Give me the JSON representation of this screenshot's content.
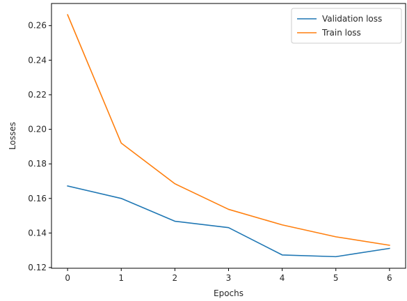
{
  "chart_data": {
    "type": "line",
    "title": "",
    "xlabel": "Epochs",
    "ylabel": "Losses",
    "x": [
      0,
      1,
      2,
      3,
      4,
      5,
      6
    ],
    "xlim": [
      -0.3,
      6.3
    ],
    "ylim": [
      0.1196,
      0.2728
    ],
    "xticks": [
      0,
      1,
      2,
      3,
      4,
      5,
      6
    ],
    "yticks": [
      0.12,
      0.14,
      0.16,
      0.18,
      0.2,
      0.22,
      0.24,
      0.26
    ],
    "ytick_labels": [
      "0.12",
      "0.14",
      "0.16",
      "0.18",
      "0.20",
      "0.22",
      "0.24",
      "0.26"
    ],
    "grid": false,
    "legend_position": "top-right",
    "series": [
      {
        "name": "Validation loss",
        "color": "#1f77b4",
        "values": [
          0.1672,
          0.16,
          0.1468,
          0.1431,
          0.1273,
          0.1263,
          0.1311
        ]
      },
      {
        "name": "Train loss",
        "color": "#ff7f0e",
        "values": [
          0.2663,
          0.192,
          0.1685,
          0.1537,
          0.1447,
          0.1378,
          0.1329
        ]
      }
    ]
  }
}
